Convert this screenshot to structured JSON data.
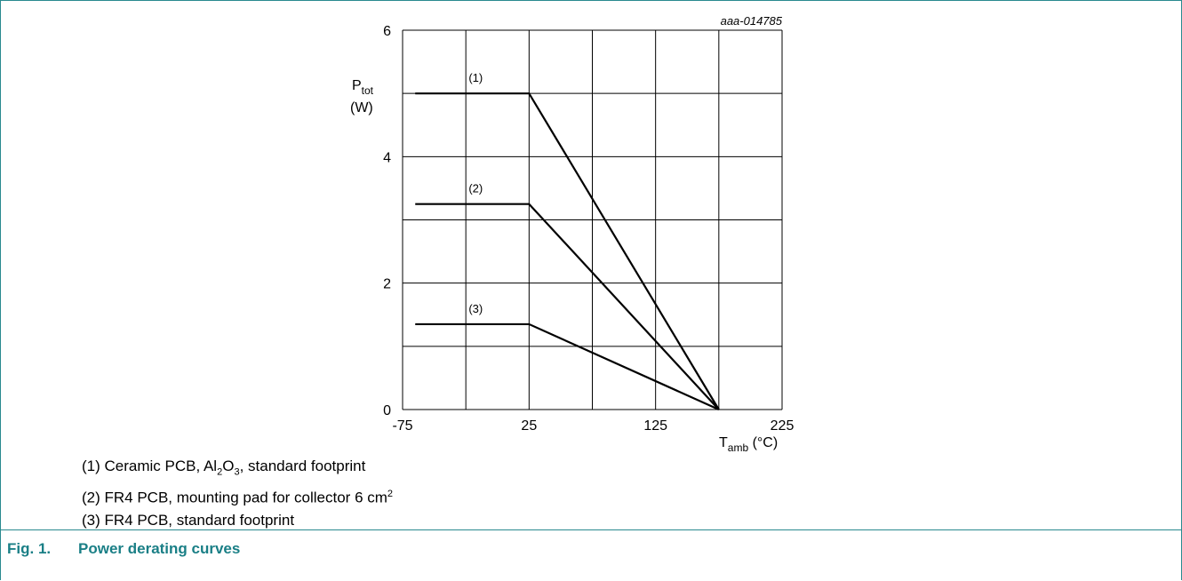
{
  "figure": {
    "number": "Fig. 1.",
    "title": "Power derating curves",
    "code": "aaa-014785"
  },
  "notes": [
    {
      "prefix": "(1) Ceramic PCB, Al",
      "sub1": "2",
      "mid": "O",
      "sub2": "3",
      "suffix": ", standard footprint"
    },
    {
      "text": "(2) FR4 PCB, mounting pad for collector 6 cm",
      "sup": "2"
    },
    {
      "text": "(3) FR4 PCB, standard footprint"
    }
  ],
  "chart_data": {
    "type": "line",
    "xlabel": {
      "main": "T",
      "sub": "amb",
      "unit": " (°C)"
    },
    "ylabel": {
      "main": "P",
      "sub": "tot",
      "unit": "(W)"
    },
    "xlim": [
      -75,
      225
    ],
    "ylim": [
      0,
      6
    ],
    "x_ticks": [
      "-75",
      "25",
      "125",
      "225"
    ],
    "y_ticks": [
      "0",
      "2",
      "4",
      "6"
    ],
    "grid": true,
    "series": [
      {
        "name": "(1)",
        "x": [
          -65,
          25,
          175
        ],
        "y": [
          5.0,
          5.0,
          0
        ]
      },
      {
        "name": "(2)",
        "x": [
          -65,
          25,
          175
        ],
        "y": [
          3.25,
          3.25,
          0
        ]
      },
      {
        "name": "(3)",
        "x": [
          -65,
          25,
          175
        ],
        "y": [
          1.35,
          1.35,
          0
        ]
      }
    ]
  }
}
